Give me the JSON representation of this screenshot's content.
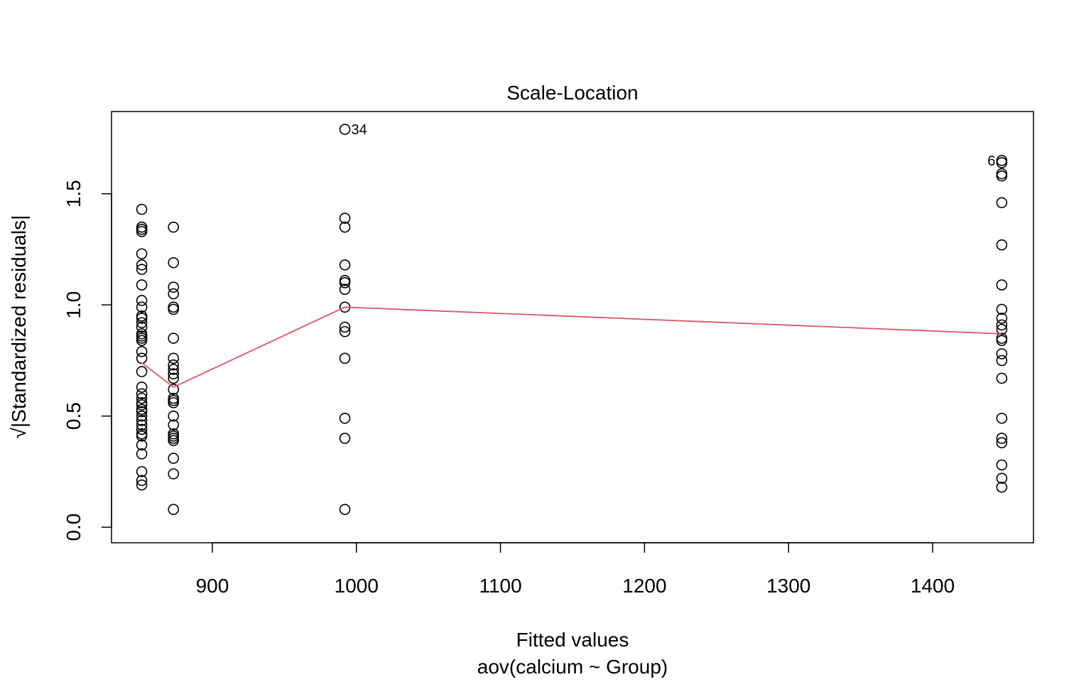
{
  "chart_data": {
    "type": "scatter",
    "title": "Scale-Location",
    "xlabel": "Fitted values",
    "subtitle": "aov(calcium ~ Group)",
    "ylabel": "√|Standardized residuals|",
    "xlim": [
      830,
      1470
    ],
    "ylim": [
      -0.07,
      1.87
    ],
    "xticks": [
      900,
      1000,
      1100,
      1200,
      1300,
      1400
    ],
    "xtick_labels": [
      "900",
      "1000",
      "1100",
      "1200",
      "1300",
      "1400"
    ],
    "yticks": [
      0.0,
      0.5,
      1.0,
      1.5
    ],
    "ytick_labels": [
      "0.0",
      "0.5",
      "1.0",
      "1.5"
    ],
    "grid": false,
    "legend": "none",
    "colors": {
      "points": "#000000",
      "smooth": "#DF536B"
    },
    "groups": [
      {
        "fitted": 851,
        "values": [
          1.43,
          1.35,
          1.34,
          1.33,
          1.23,
          1.18,
          1.16,
          1.09,
          1.02,
          0.99,
          0.95,
          0.94,
          0.92,
          0.9,
          0.87,
          0.86,
          0.85,
          0.84,
          0.79,
          0.76,
          0.7,
          0.63,
          0.6,
          0.58,
          0.56,
          0.55,
          0.53,
          0.52,
          0.5,
          0.48,
          0.46,
          0.44,
          0.42,
          0.41,
          0.37,
          0.33,
          0.25,
          0.21,
          0.19
        ]
      },
      {
        "fitted": 873,
        "values": [
          1.35,
          1.19,
          1.08,
          1.05,
          0.99,
          0.98,
          0.85,
          0.76,
          0.73,
          0.71,
          0.69,
          0.67,
          0.62,
          0.58,
          0.57,
          0.56,
          0.5,
          0.46,
          0.42,
          0.41,
          0.4,
          0.39,
          0.31,
          0.24,
          0.08
        ]
      },
      {
        "fitted": 992,
        "values": [
          1.79,
          1.39,
          1.35,
          1.18,
          1.11,
          1.1,
          1.07,
          0.99,
          0.9,
          0.88,
          0.76,
          0.49,
          0.4,
          0.08
        ]
      },
      {
        "fitted": 1448,
        "values": [
          1.65,
          1.64,
          1.59,
          1.58,
          1.46,
          1.27,
          1.09,
          0.98,
          0.94,
          0.91,
          0.89,
          0.85,
          0.84,
          0.78,
          0.75,
          0.67,
          0.49,
          0.4,
          0.38,
          0.28,
          0.22,
          0.18
        ]
      }
    ],
    "smooth_line": {
      "x": [
        851,
        873,
        992,
        1448
      ],
      "y": [
        0.74,
        0.63,
        0.99,
        0.87
      ]
    },
    "annotations": [
      {
        "text": "34",
        "x": 992,
        "y": 1.79,
        "side": "right"
      },
      {
        "text": "6",
        "x": 1448,
        "y": 1.65,
        "side": "left"
      }
    ]
  }
}
